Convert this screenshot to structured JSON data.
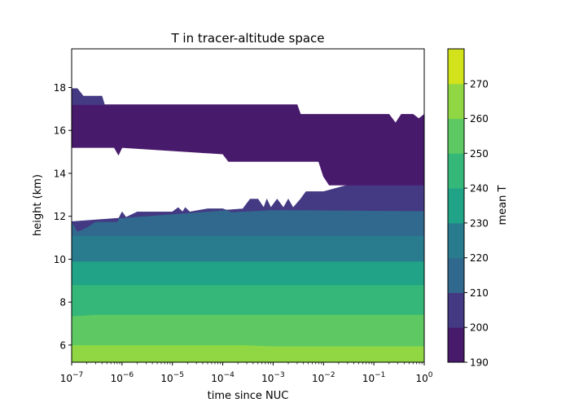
{
  "chart_data": {
    "type": "contourf",
    "title": "T in tracer-altitude space",
    "xlabel": "time since NUC",
    "ylabel": "height (km)",
    "xscale": "log",
    "xlim": [
      1e-07,
      1
    ],
    "ylim": [
      5.2,
      19.8
    ],
    "x_ticks": [
      {
        "value": 1e-07,
        "base": "10",
        "exp": "−7"
      },
      {
        "value": 1e-06,
        "base": "10",
        "exp": "−6"
      },
      {
        "value": 1e-05,
        "base": "10",
        "exp": "−5"
      },
      {
        "value": 0.0001,
        "base": "10",
        "exp": "−4"
      },
      {
        "value": 0.001,
        "base": "10",
        "exp": "−3"
      },
      {
        "value": 0.01,
        "base": "10",
        "exp": "−2"
      },
      {
        "value": 0.1,
        "base": "10",
        "exp": "−1"
      },
      {
        "value": 1,
        "base": "10",
        "exp": "0"
      }
    ],
    "y_ticks": [
      6,
      8,
      10,
      12,
      14,
      16,
      18
    ],
    "colorbar": {
      "label": "mean T",
      "levels": [
        190,
        200,
        210,
        220,
        230,
        240,
        250,
        260,
        270
      ],
      "colors": [
        "#481a6c",
        "#443983",
        "#31688e",
        "#287c8e",
        "#20a386",
        "#35b779",
        "#5ec962",
        "#90d743",
        "#d2e21b"
      ]
    },
    "bands": [
      {
        "range": "260-270",
        "bottom": [
          [
            1e-07,
            5.2
          ],
          [
            1,
            5.2
          ]
        ],
        "top": [
          [
            1e-07,
            6.0
          ],
          [
            0.0003,
            6.0
          ],
          [
            0.001,
            5.95
          ],
          [
            1,
            5.95
          ]
        ]
      },
      {
        "range": "250-260",
        "bottom": [
          [
            1e-07,
            6.0
          ],
          [
            0.0003,
            6.0
          ],
          [
            0.001,
            5.95
          ],
          [
            1,
            5.95
          ]
        ],
        "top": [
          [
            1e-07,
            7.35
          ],
          [
            3e-07,
            7.42
          ],
          [
            1,
            7.42
          ]
        ]
      },
      {
        "range": "240-250",
        "bottom": [
          [
            1e-07,
            7.35
          ],
          [
            3e-07,
            7.42
          ],
          [
            1,
            7.42
          ]
        ],
        "top": [
          [
            1e-07,
            8.8
          ],
          [
            1,
            8.8
          ]
        ]
      },
      {
        "range": "230-240",
        "bottom": [
          [
            1e-07,
            8.8
          ],
          [
            1,
            8.8
          ]
        ],
        "top": [
          [
            1e-07,
            9.9
          ],
          [
            1,
            9.9
          ]
        ]
      },
      {
        "range": "220-230",
        "bottom": [
          [
            1e-07,
            9.9
          ],
          [
            1,
            9.9
          ]
        ],
        "top": [
          [
            1e-07,
            11.1
          ],
          [
            1,
            11.1
          ]
        ]
      },
      {
        "range": "210-220",
        "bottom": [
          [
            1e-07,
            11.1
          ],
          [
            1,
            11.1
          ]
        ],
        "top": [
          [
            1e-07,
            11.75
          ],
          [
            1.3e-07,
            11.3
          ],
          [
            1.7e-07,
            11.4
          ],
          [
            2.2e-07,
            11.55
          ],
          [
            3e-07,
            11.75
          ],
          [
            8e-07,
            11.75
          ],
          [
            1e-06,
            12.2
          ],
          [
            1.2e-06,
            11.95
          ],
          [
            2e-06,
            12.2
          ],
          [
            1e-05,
            12.2
          ],
          [
            1.3e-05,
            12.4
          ],
          [
            1.6e-05,
            12.2
          ],
          [
            1.8e-05,
            12.4
          ],
          [
            2.2e-05,
            12.2
          ],
          [
            5e-05,
            12.35
          ],
          [
            0.0001,
            12.35
          ],
          [
            0.00015,
            12.2
          ],
          [
            0.001,
            12.3
          ],
          [
            1,
            12.25
          ]
        ]
      },
      {
        "range": "200-210",
        "bottom": [
          [
            1e-07,
            11.75
          ],
          [
            1.3e-07,
            11.3
          ],
          [
            1.7e-07,
            11.4
          ],
          [
            2.2e-07,
            11.55
          ],
          [
            3e-07,
            11.75
          ],
          [
            8e-07,
            11.75
          ],
          [
            1e-06,
            12.2
          ],
          [
            1.2e-06,
            11.95
          ],
          [
            2e-06,
            12.2
          ],
          [
            1e-05,
            12.2
          ],
          [
            1.3e-05,
            12.4
          ],
          [
            1.6e-05,
            12.2
          ],
          [
            1.8e-05,
            12.4
          ],
          [
            2.2e-05,
            12.2
          ],
          [
            5e-05,
            12.35
          ],
          [
            0.0001,
            12.35
          ],
          [
            0.00015,
            12.2
          ],
          [
            0.001,
            12.3
          ],
          [
            1,
            12.25
          ]
        ],
        "top": [
          [
            0.00025,
            12.35
          ],
          [
            0.00035,
            12.8
          ],
          [
            0.0005,
            12.8
          ],
          [
            0.00065,
            12.4
          ],
          [
            0.00075,
            12.8
          ],
          [
            0.0009,
            12.4
          ],
          [
            0.0012,
            12.8
          ],
          [
            0.0016,
            12.4
          ],
          [
            0.002,
            12.8
          ],
          [
            0.0025,
            12.4
          ],
          [
            0.0035,
            12.8
          ],
          [
            0.0045,
            13.15
          ],
          [
            0.01,
            13.15
          ],
          [
            0.03,
            13.45
          ],
          [
            1,
            13.45
          ]
        ]
      },
      {
        "range": "190-200",
        "bottom": [
          [
            1e-07,
            15.2
          ],
          [
            7e-07,
            15.2
          ],
          [
            8.5e-07,
            14.85
          ],
          [
            1e-06,
            15.2
          ],
          [
            0.0001,
            14.9
          ],
          [
            0.00013,
            14.55
          ],
          [
            0.001,
            14.55
          ],
          [
            0.008,
            14.55
          ],
          [
            0.01,
            13.85
          ],
          [
            0.013,
            13.45
          ],
          [
            1,
            13.45
          ]
        ],
        "top": [
          [
            1e-07,
            17.2
          ],
          [
            4e-07,
            17.2
          ],
          [
            4.5e-07,
            17.2
          ],
          [
            0.003,
            17.2
          ],
          [
            0.0035,
            16.75
          ],
          [
            0.2,
            16.75
          ],
          [
            0.27,
            16.35
          ],
          [
            0.35,
            16.75
          ],
          [
            0.6,
            16.75
          ],
          [
            0.78,
            16.55
          ],
          [
            1,
            16.75
          ]
        ]
      },
      {
        "range": "200-210",
        "bottom": [
          [
            1e-07,
            17.2
          ],
          [
            4.5e-07,
            17.2
          ]
        ],
        "top": [
          [
            1e-07,
            17.95
          ],
          [
            1.3e-07,
            17.95
          ],
          [
            1.7e-07,
            17.6
          ],
          [
            4e-07,
            17.6
          ],
          [
            4.5e-07,
            17.2
          ]
        ]
      }
    ]
  }
}
